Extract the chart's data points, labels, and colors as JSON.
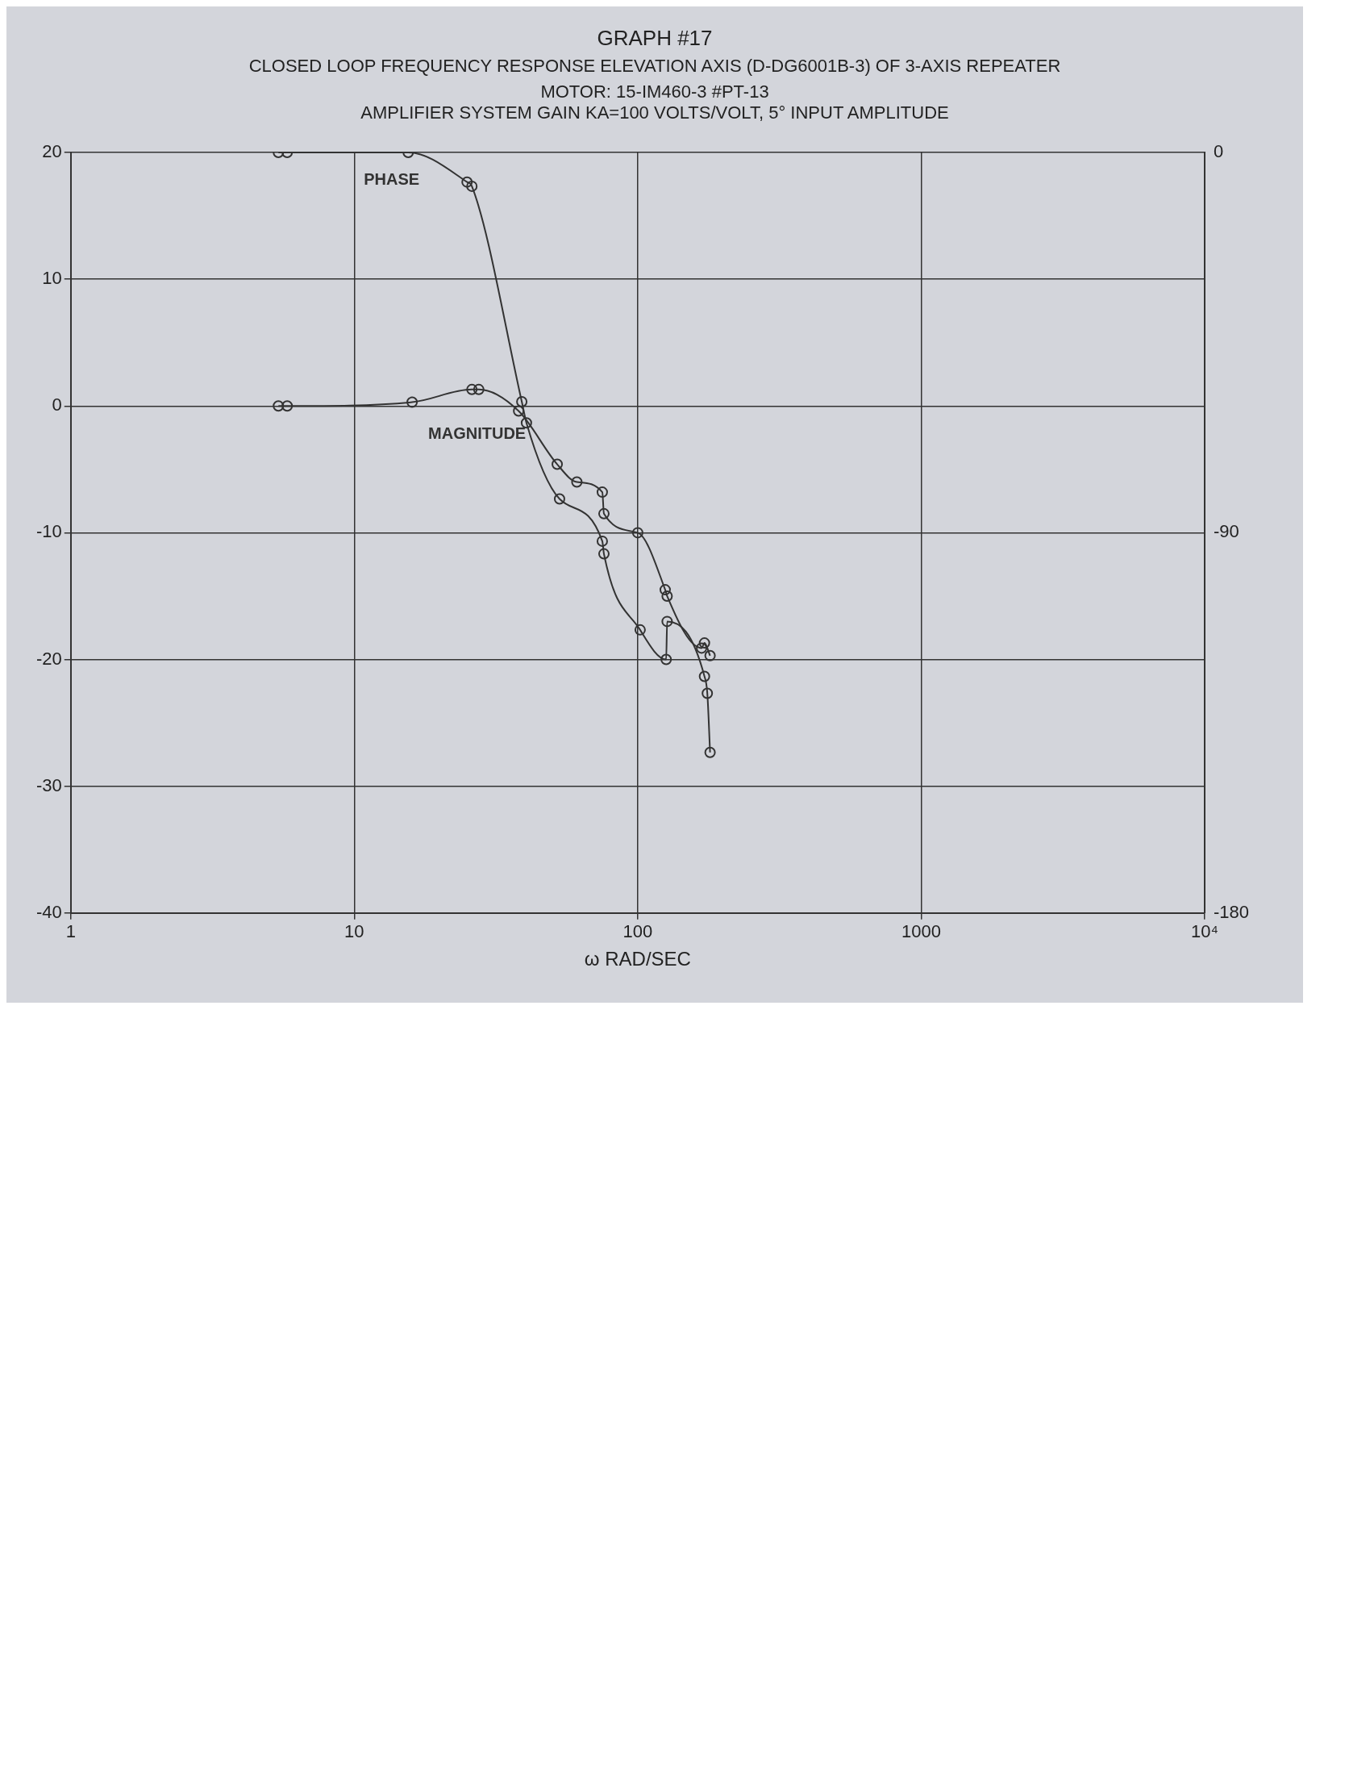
{
  "chart_data": {
    "type": "line",
    "title": "GRAPH #17",
    "subtitle": "CLOSED LOOP FREQUENCY RESPONSE ELEVATION AXIS (D-DG6001B-3) OF 3-AXIS REPEATER",
    "annotations": [
      "MOTOR: 15-IM460-3 #PT-13",
      "AMPLIFIER SYSTEM GAIN KA=100 VOLTS/VOLT, 5° INPUT AMPLITUDE"
    ],
    "xlabel": "ω RAD/SEC",
    "log": "x",
    "grid": true,
    "legend": false,
    "marker": "circle",
    "line_style": "solid",
    "xlim": [
      1,
      10000
    ],
    "xticks": [
      1,
      10,
      100,
      1000,
      {
        "value": 10000,
        "label": "10⁴"
      }
    ],
    "ylim": [
      -40,
      20
    ],
    "yticks": [
      -40,
      -30,
      -20,
      -10,
      0,
      10,
      20
    ],
    "y2lim": [
      -180,
      0
    ],
    "y2ticks": [
      -180,
      -90,
      0
    ],
    "series": [
      {
        "name": "MAGNITUDE",
        "color": "#333333",
        "x": [
          5.4,
          5.8,
          16,
          26,
          27.5,
          38,
          52,
          61,
          75,
          76,
          100,
          125,
          127,
          168,
          172,
          180
        ],
        "values": [
          0,
          0,
          0.3,
          1.3,
          1.3,
          -0.4,
          -4.6,
          -6,
          -6.8,
          -8.5,
          -10,
          -14.5,
          -15,
          -19.1,
          -18.7,
          -19.7
        ]
      },
      {
        "name": "PHASE",
        "color": "#333333",
        "axis": "y2",
        "x": [
          5.4,
          5.8,
          15.5,
          25,
          26,
          39,
          40.5,
          53,
          75,
          76,
          102,
          126,
          127,
          172,
          176,
          180
        ],
        "values": [
          0,
          0,
          0,
          -7,
          -8,
          -59,
          -64,
          -82,
          -92,
          -95,
          -113,
          -120,
          -111,
          -124,
          -128,
          -142
        ]
      }
    ]
  }
}
